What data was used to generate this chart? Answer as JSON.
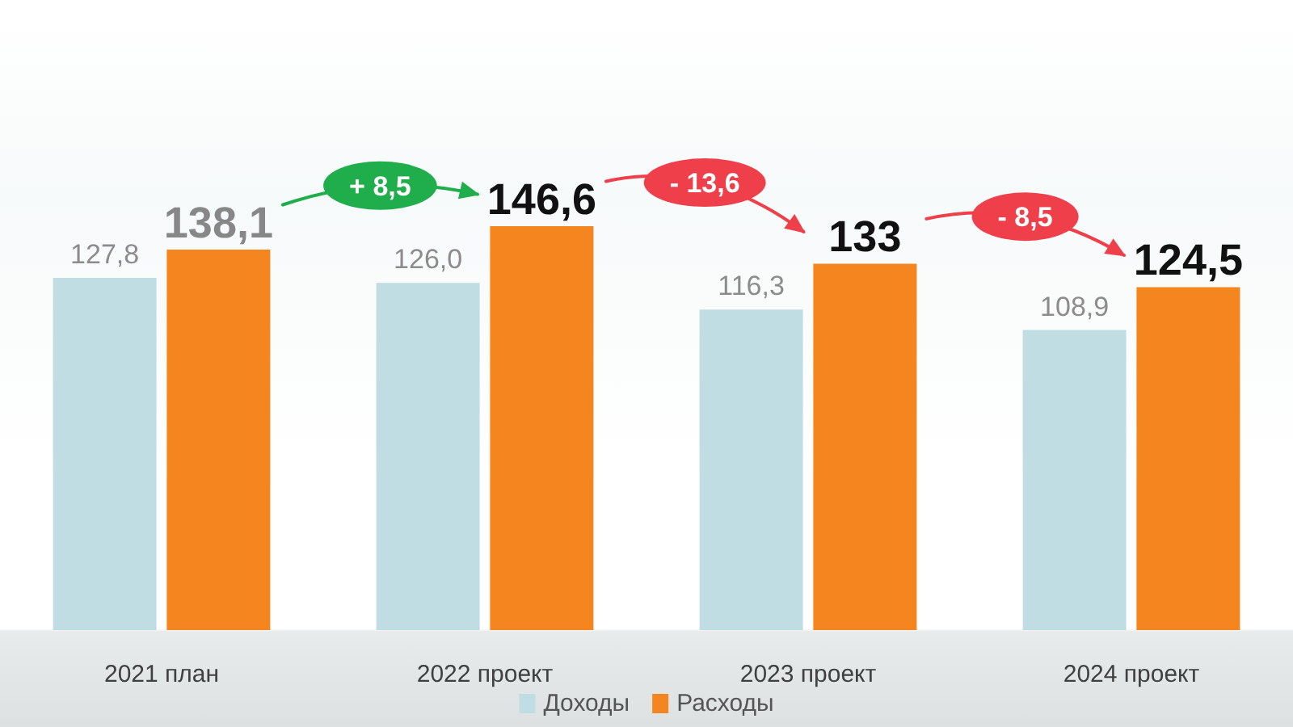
{
  "chart_data": {
    "type": "bar",
    "categories": [
      "2021 план",
      "2022 проект",
      "2023 проект",
      "2024 проект"
    ],
    "series": [
      {
        "name": "Доходы",
        "color": "#bfdde3",
        "values": [
          127.8,
          126.0,
          116.3,
          108.9
        ],
        "value_labels": [
          "127,8",
          "126,0",
          "116,3",
          "108,9"
        ]
      },
      {
        "name": "Расходы",
        "color": "#f5861f",
        "values": [
          138.1,
          146.6,
          133,
          124.5
        ],
        "value_labels": [
          "138,1",
          "146,6",
          "133",
          "124,5"
        ]
      }
    ],
    "annotations": [
      "+ 8,5",
      "- 13,6",
      "- 8,5"
    ],
    "legend": "bottom"
  }
}
